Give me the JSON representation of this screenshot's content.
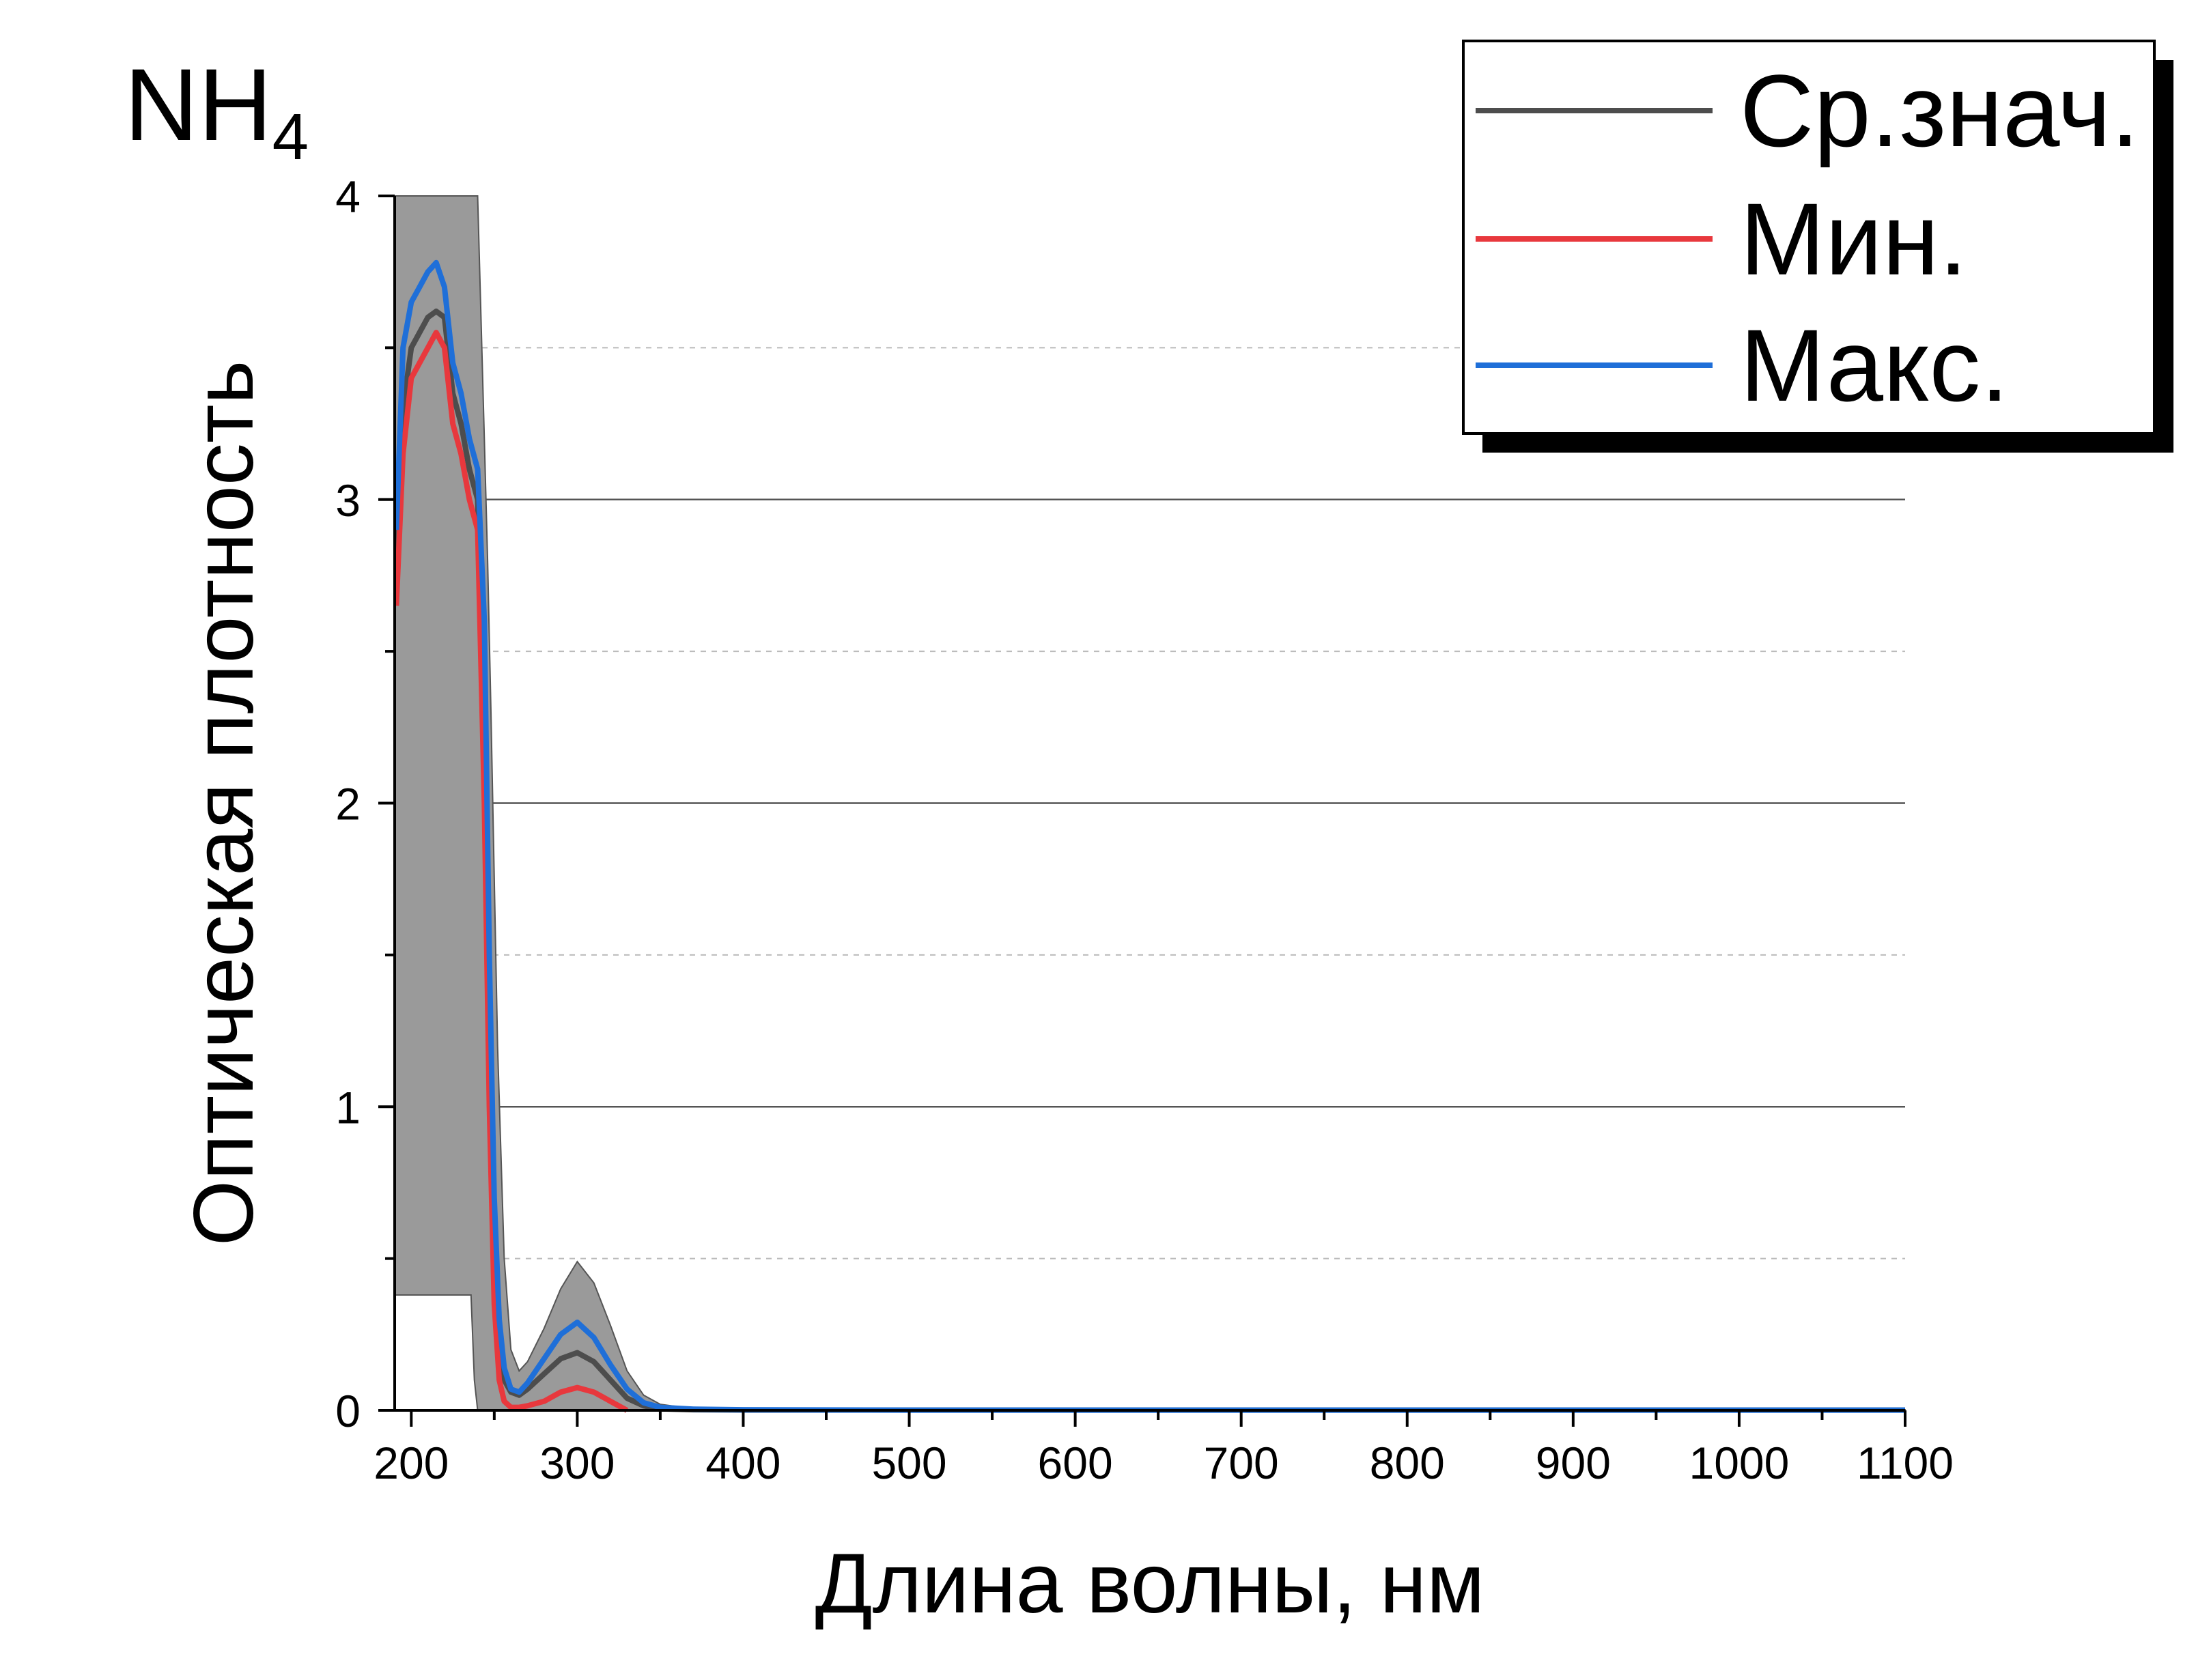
{
  "chart_data": {
    "type": "line",
    "title": "NH",
    "title_subscript": "4",
    "xlabel": "Длина волны, нм",
    "ylabel": "Оптическая плотность",
    "xlim": [
      190,
      1100
    ],
    "ylim": [
      0,
      4
    ],
    "x_ticks": [
      "200",
      "300",
      "400",
      "500",
      "600",
      "700",
      "800",
      "900",
      "1000",
      "1100"
    ],
    "y_ticks": [
      "0",
      "1",
      "2",
      "3",
      "4"
    ],
    "grid": "horizontal major solid, minor dashed",
    "legend_position": "top-right",
    "band": {
      "x": [
        190,
        236,
        238,
        240,
        244,
        246,
        248,
        252,
        256,
        260,
        265,
        270,
        280,
        290,
        300,
        310,
        320,
        330,
        340,
        350,
        370,
        400,
        1100
      ],
      "upper": [
        4.0,
        4.0,
        4.0,
        4.0,
        3.2,
        2.8,
        2.3,
        1.2,
        0.5,
        0.2,
        0.13,
        0.16,
        0.27,
        0.4,
        0.49,
        0.42,
        0.28,
        0.13,
        0.05,
        0.02,
        0.005,
        0.002,
        0.002
      ],
      "lower": [
        0.38,
        0.38,
        0.1,
        0.0,
        0.0,
        0.0,
        0.0,
        0.0,
        0.0,
        0.0,
        0.0,
        0.0,
        0.0,
        0.0,
        0.0,
        0.0,
        0.0,
        0.0,
        0.0,
        0.0,
        0.0,
        0.0,
        0.0
      ]
    },
    "series": [
      {
        "name": "Ср.знач.",
        "color": "#4d4d4d",
        "x": [
          191,
          195,
          200,
          205,
          210,
          215,
          220,
          225,
          230,
          235,
          240,
          244,
          247,
          250,
          253,
          256,
          260,
          265,
          270,
          280,
          290,
          300,
          310,
          320,
          330,
          340,
          350,
          370,
          400,
          500,
          600,
          700,
          800,
          900,
          1000,
          1100
        ],
        "y": [
          2.8,
          3.3,
          3.5,
          3.55,
          3.6,
          3.62,
          3.6,
          3.35,
          3.25,
          3.1,
          3.0,
          2.2,
          1.2,
          0.55,
          0.22,
          0.1,
          0.06,
          0.05,
          0.07,
          0.12,
          0.17,
          0.19,
          0.16,
          0.1,
          0.04,
          0.015,
          0.005,
          0.002,
          0.001,
          0.001,
          0.001,
          0.001,
          0.001,
          0.001,
          0.001,
          0.001
        ]
      },
      {
        "name": "Мин.",
        "color": "#e8383d",
        "x": [
          191,
          195,
          200,
          205,
          210,
          215,
          220,
          225,
          230,
          235,
          240,
          244,
          247,
          250,
          253,
          256,
          260,
          265,
          270,
          280,
          290,
          300,
          310,
          320,
          330
        ],
        "y": [
          2.65,
          3.15,
          3.4,
          3.45,
          3.5,
          3.55,
          3.5,
          3.25,
          3.15,
          3.0,
          2.9,
          2.0,
          1.0,
          0.35,
          0.1,
          0.03,
          0.01,
          0.01,
          0.015,
          0.03,
          0.06,
          0.075,
          0.06,
          0.03,
          0.0
        ]
      },
      {
        "name": "Макс.",
        "color": "#1f6fd8",
        "x": [
          191,
          195,
          200,
          205,
          210,
          215,
          220,
          225,
          230,
          235,
          240,
          244,
          247,
          250,
          253,
          256,
          260,
          265,
          270,
          280,
          290,
          300,
          310,
          320,
          330,
          340,
          350,
          370,
          400,
          500,
          600,
          700,
          800,
          900,
          1000,
          1100
        ],
        "y": [
          2.9,
          3.5,
          3.65,
          3.7,
          3.75,
          3.78,
          3.7,
          3.45,
          3.35,
          3.2,
          3.1,
          2.6,
          1.5,
          0.7,
          0.3,
          0.14,
          0.07,
          0.06,
          0.09,
          0.17,
          0.25,
          0.29,
          0.24,
          0.15,
          0.07,
          0.025,
          0.01,
          0.004,
          0.002,
          0.001,
          0.001,
          0.001,
          0.001,
          0.001,
          0.001,
          0.001
        ]
      }
    ]
  }
}
